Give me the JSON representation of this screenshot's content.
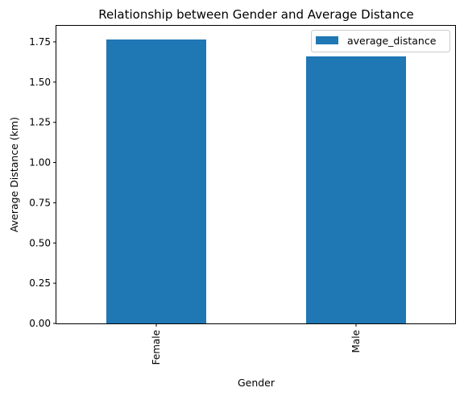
{
  "chart_data": {
    "type": "bar",
    "title": "Relationship between Gender and Average Distance",
    "xlabel": "Gender",
    "ylabel": "Average Distance (km)",
    "categories": [
      "Female",
      "Male"
    ],
    "series": [
      {
        "name": "average_distance",
        "values": [
          1.765,
          1.66
        ]
      }
    ],
    "ylim": [
      0,
      1.85
    ],
    "yticks": [
      0.0,
      0.25,
      0.5,
      0.75,
      1.0,
      1.25,
      1.5,
      1.75
    ],
    "ytick_labels": [
      "0.00",
      "0.25",
      "0.50",
      "0.75",
      "1.00",
      "1.25",
      "1.50",
      "1.75"
    ],
    "grid": false,
    "legend_position": "top-right",
    "bar_color": "#1f77b4"
  }
}
